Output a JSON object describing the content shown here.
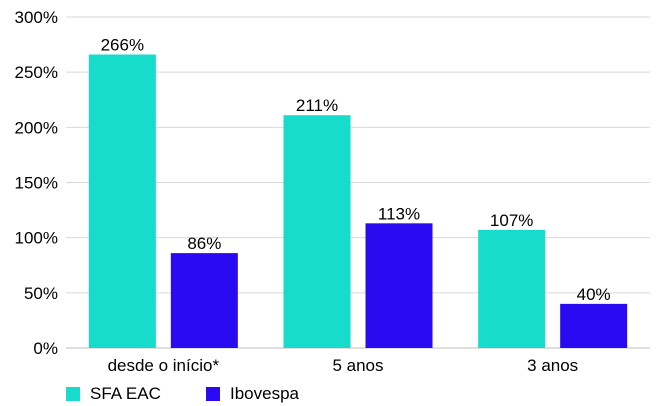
{
  "colors": {
    "sfa": "#17DBCB",
    "ibov": "#2A0BF1",
    "grid": "#D9D9D9",
    "axis": "#BFBFBF"
  },
  "legend": [
    {
      "name": "SFA EAC",
      "color": "#17DBCB"
    },
    {
      "name": "Ibovespa",
      "color": "#2A0BF1"
    }
  ],
  "chart_data": {
    "type": "bar",
    "categories": [
      "desde o início*",
      "5 anos",
      "3 anos"
    ],
    "series": [
      {
        "name": "SFA EAC",
        "values": [
          266,
          211,
          107
        ],
        "labels": [
          "266%",
          "211%",
          "107%"
        ]
      },
      {
        "name": "Ibovespa",
        "values": [
          86,
          113,
          40
        ],
        "labels": [
          "86%",
          "113%",
          "40%"
        ]
      }
    ],
    "yticks": [
      "0%",
      "50%",
      "100%",
      "150%",
      "200%",
      "250%",
      "300%"
    ],
    "ylim": [
      0,
      300
    ],
    "grid": true,
    "legend_position": "bottom-left"
  }
}
